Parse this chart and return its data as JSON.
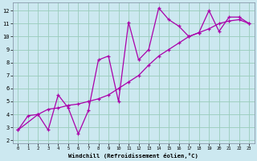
{
  "xlabel": "Windchill (Refroidissement éolien,°C)",
  "xlim": [
    -0.5,
    23.5
  ],
  "ylim": [
    1.8,
    12.6
  ],
  "yticks": [
    2,
    3,
    4,
    5,
    6,
    7,
    8,
    9,
    10,
    11,
    12
  ],
  "xticks": [
    0,
    1,
    2,
    3,
    4,
    5,
    6,
    7,
    8,
    9,
    10,
    11,
    12,
    13,
    14,
    15,
    16,
    17,
    18,
    19,
    20,
    21,
    22,
    23
  ],
  "bg_color": "#cce8f0",
  "line_color": "#aa00aa",
  "grid_color": "#99ccbb",
  "line1_x": [
    0,
    1,
    2,
    3,
    4,
    5,
    6,
    7,
    8,
    9,
    10,
    11,
    12,
    13,
    14,
    15,
    16,
    17,
    18,
    19,
    20,
    21,
    22,
    23
  ],
  "line1_y": [
    2.8,
    3.9,
    4.0,
    4.4,
    4.5,
    4.7,
    4.8,
    5.0,
    5.2,
    5.5,
    6.0,
    6.5,
    7.0,
    7.8,
    8.5,
    9.0,
    9.5,
    10.0,
    10.3,
    10.6,
    11.0,
    11.2,
    11.3,
    11.0
  ],
  "line2_x": [
    0,
    2,
    3,
    4,
    5,
    6,
    7,
    8,
    9,
    10,
    11,
    12,
    13,
    14,
    15,
    16,
    17,
    18,
    19,
    20,
    21,
    22,
    23
  ],
  "line2_y": [
    2.8,
    4.0,
    2.8,
    5.5,
    4.5,
    2.5,
    4.3,
    8.2,
    8.5,
    5.0,
    11.1,
    8.2,
    9.0,
    12.2,
    11.3,
    10.8,
    10.0,
    10.3,
    12.0,
    10.4,
    11.5,
    11.5,
    11.0
  ]
}
